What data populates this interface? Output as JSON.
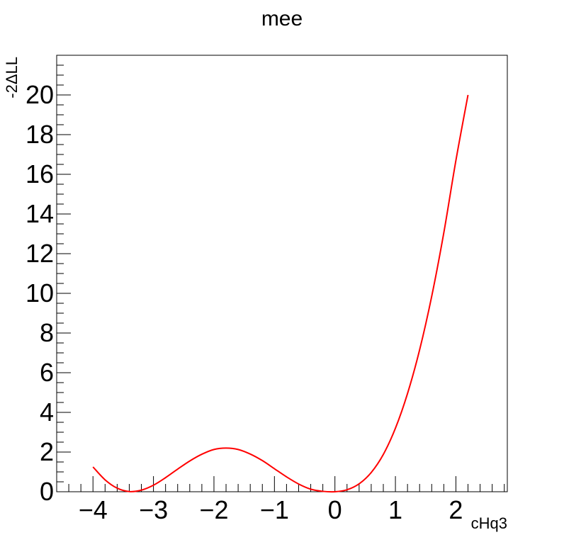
{
  "chart_data": {
    "type": "line",
    "title": "mee",
    "xlabel": "cHq3",
    "ylabel": "-2ΔLL",
    "xlim": [
      -4.6,
      2.85
    ],
    "ylim": [
      0,
      22
    ],
    "x_ticks": [
      -4,
      -3,
      -2,
      -1,
      0,
      1,
      2
    ],
    "x_tick_labels": [
      "−4",
      "−3",
      "−2",
      "−1",
      "0",
      "1",
      "2"
    ],
    "y_ticks": [
      0,
      2,
      4,
      6,
      8,
      10,
      12,
      14,
      16,
      18,
      20
    ],
    "y_tick_labels": [
      "0",
      "2",
      "4",
      "6",
      "8",
      "10",
      "12",
      "14",
      "16",
      "18",
      "20"
    ],
    "grid": false,
    "series": [
      {
        "color": "#ff0000",
        "x": [
          -4.0,
          -3.8,
          -3.6,
          -3.4,
          -3.2,
          -3.0,
          -2.8,
          -2.6,
          -2.4,
          -2.2,
          -2.0,
          -1.8,
          -1.6,
          -1.4,
          -1.2,
          -1.0,
          -0.8,
          -0.6,
          -0.4,
          -0.2,
          0.0,
          0.2,
          0.4,
          0.6,
          0.8,
          1.0,
          1.2,
          1.4,
          1.6,
          1.8,
          2.0,
          2.2
        ],
        "y": [
          1.25,
          0.6,
          0.18,
          0.01,
          0.08,
          0.33,
          0.71,
          1.14,
          1.55,
          1.89,
          2.13,
          2.2,
          2.13,
          1.9,
          1.57,
          1.16,
          0.75,
          0.39,
          0.13,
          0.02,
          0.0,
          0.1,
          0.4,
          0.97,
          1.88,
          3.2,
          4.95,
          7.15,
          9.85,
          13.05,
          16.7,
          20.0
        ]
      }
    ]
  }
}
